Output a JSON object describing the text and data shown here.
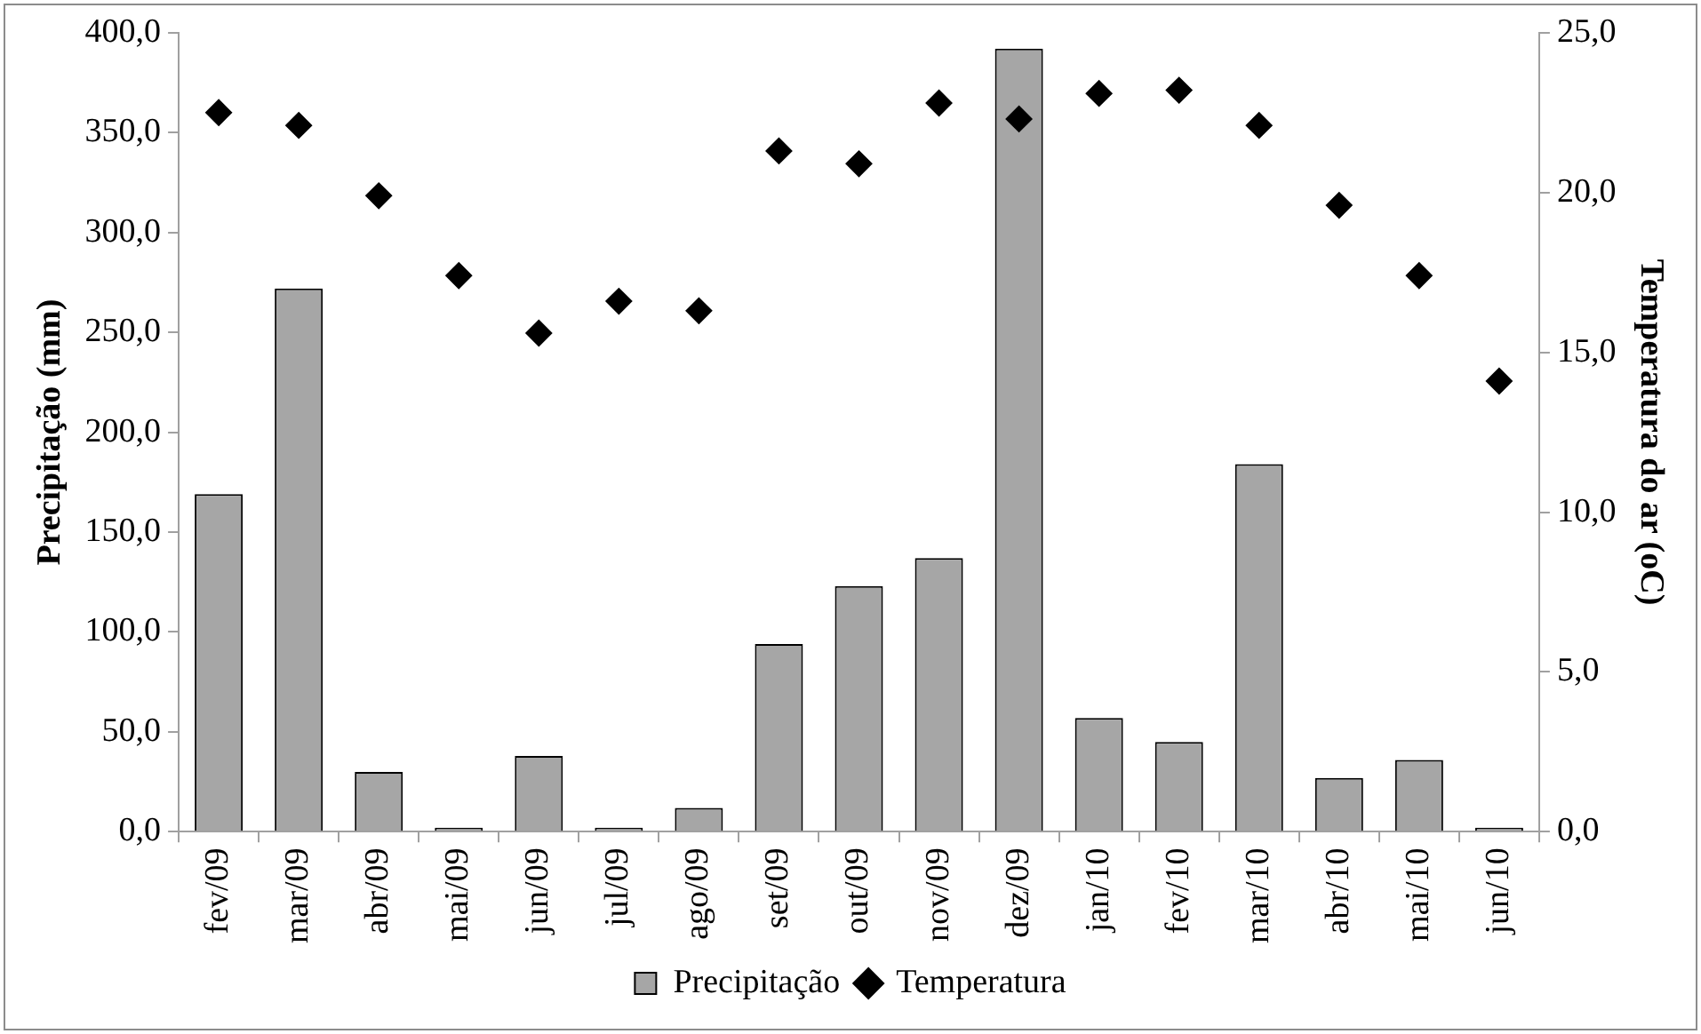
{
  "chart_data": {
    "type": "bar",
    "ylabel": "Precipitação (mm)",
    "y2label": "Temperatura do ar (oC)",
    "categories": [
      "fev/09",
      "mar/09",
      "abr/09",
      "mai/09",
      "jun/09",
      "jul/09",
      "ago/09",
      "set/09",
      "out/09",
      "nov/09",
      "dez/09",
      "jan/10",
      "fev/10",
      "mar/10",
      "abr/10",
      "mai/10",
      "jun/10"
    ],
    "series": [
      {
        "name": "Precipitação",
        "color": "#a6a6a6",
        "values": [
          169,
          272,
          30,
          2,
          38,
          2,
          12,
          94,
          123,
          137,
          392,
          57,
          45,
          184,
          27,
          36,
          2
        ]
      },
      {
        "name": "Temperatura",
        "type": "scatter",
        "axis": "y2",
        "color": "#000000",
        "marker": "diamond",
        "values": [
          22.5,
          22.1,
          19.9,
          17.4,
          15.6,
          16.6,
          16.3,
          21.3,
          20.9,
          22.8,
          22.3,
          23.1,
          23.2,
          22.1,
          19.6,
          17.4,
          14.1
        ]
      }
    ],
    "ylim": [
      0,
      400
    ],
    "yticks": [
      {
        "value": 0,
        "label": "0,0"
      },
      {
        "value": 50,
        "label": "50,0"
      },
      {
        "value": 100,
        "label": "100,0"
      },
      {
        "value": 150,
        "label": "150,0"
      },
      {
        "value": 200,
        "label": "200,0"
      },
      {
        "value": 250,
        "label": "250,0"
      },
      {
        "value": 300,
        "label": "300,0"
      },
      {
        "value": 350,
        "label": "350,0"
      },
      {
        "value": 400,
        "label": "400,0"
      }
    ],
    "y2lim": [
      0,
      25
    ],
    "y2ticks": [
      {
        "value": 0,
        "label": "0,0"
      },
      {
        "value": 5,
        "label": "5,0"
      },
      {
        "value": 10,
        "label": "10,0"
      },
      {
        "value": 15,
        "label": "15,0"
      },
      {
        "value": 20,
        "label": "20,0"
      },
      {
        "value": 25,
        "label": "25,0"
      }
    ],
    "grid": false,
    "legend": "bottom"
  }
}
